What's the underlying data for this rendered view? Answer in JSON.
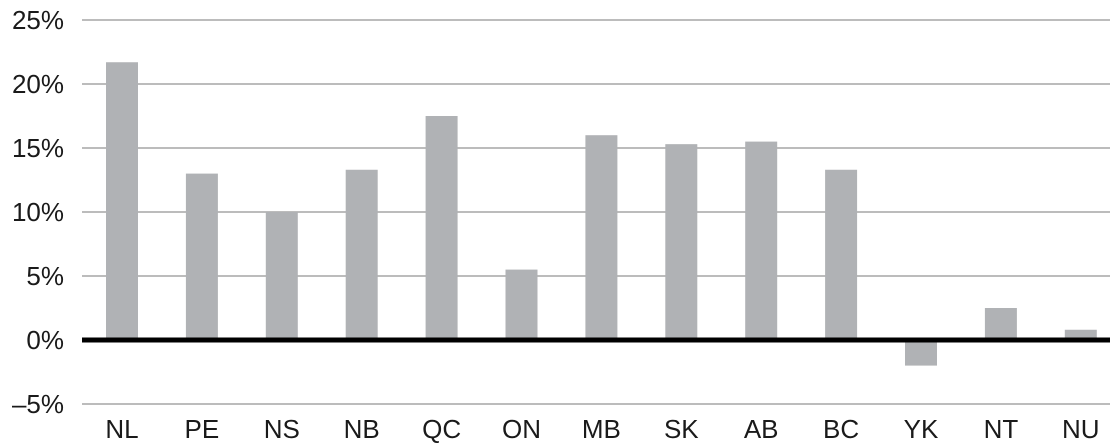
{
  "chart_data": {
    "type": "bar",
    "categories": [
      "NL",
      "PE",
      "NS",
      "NB",
      "QC",
      "ON",
      "MB",
      "SK",
      "AB",
      "BC",
      "YK",
      "NT",
      "NU"
    ],
    "values": [
      21.7,
      13.0,
      10.0,
      13.3,
      17.5,
      5.5,
      16.0,
      15.3,
      15.5,
      13.3,
      -2.0,
      2.5,
      0.8
    ],
    "title": "",
    "xlabel": "",
    "ylabel": "",
    "ylim": [
      -5,
      25
    ],
    "yticks": [
      -5,
      0,
      5,
      10,
      15,
      20,
      25
    ],
    "ytick_labels": [
      "–5%",
      "0%",
      "5%",
      "10%",
      "15%",
      "20%",
      "25%"
    ],
    "grid": true,
    "legend": "none",
    "bar_color": "#b0b2b5",
    "gridline_color": "#bcbcbc",
    "zero_line_color": "#000000"
  }
}
